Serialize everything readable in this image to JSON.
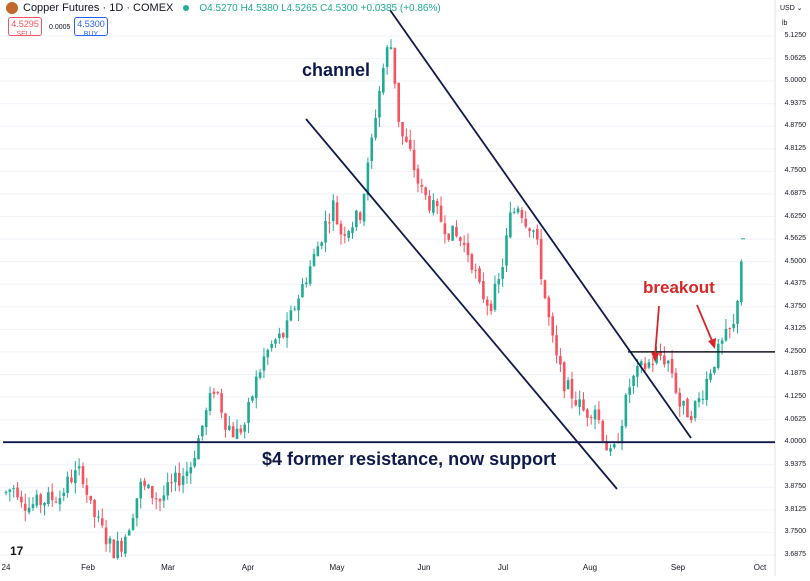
{
  "header": {
    "title": "Copper Futures · 1D · COMEX",
    "open": "O4.5270",
    "high": "H4.5380",
    "low": "L4.5265",
    "close": "C4.5300",
    "change": "+0.0385 (+0.86%)"
  },
  "trade": {
    "sell_price": "4.5295",
    "sell_label": "SELL",
    "spread": "0.0005",
    "buy_price": "4.5300",
    "buy_label": "BUY"
  },
  "axis": {
    "currency": "USD",
    "unit": "lb"
  },
  "colors": {
    "up": "#22ab94",
    "down": "#f7525f",
    "annotation_line": "#0e1a4a",
    "annotation_text": "#0e1a4a",
    "breakout": "#d62828"
  },
  "annotations": {
    "channel": "channel",
    "breakout": "breakout",
    "support": "$4 former resistance, now support"
  },
  "branding": {
    "logo_text": "17"
  },
  "chart_data": {
    "type": "candlestick",
    "title": "Copper Futures · 1D · COMEX",
    "y_ticks": [
      "5.1250",
      "5.0625",
      "5.0000",
      "4.9375",
      "4.8750",
      "4.8125",
      "4.7500",
      "4.6875",
      "4.6250",
      "4.5625",
      "4.5000",
      "4.4375",
      "4.3750",
      "4.3125",
      "4.2500",
      "4.1875",
      "4.1250",
      "4.0625",
      "4.0000",
      "3.9375",
      "3.8750",
      "3.8125",
      "3.7500",
      "3.6875"
    ],
    "x_ticks": [
      "24",
      "Feb",
      "Mar",
      "Apr",
      "May",
      "Jun",
      "Jul",
      "Aug",
      "Sep",
      "Oct"
    ],
    "ylim": [
      3.67,
      5.14
    ],
    "horizontal_levels": [
      4.0,
      4.25
    ],
    "last_price": 4.53
  }
}
